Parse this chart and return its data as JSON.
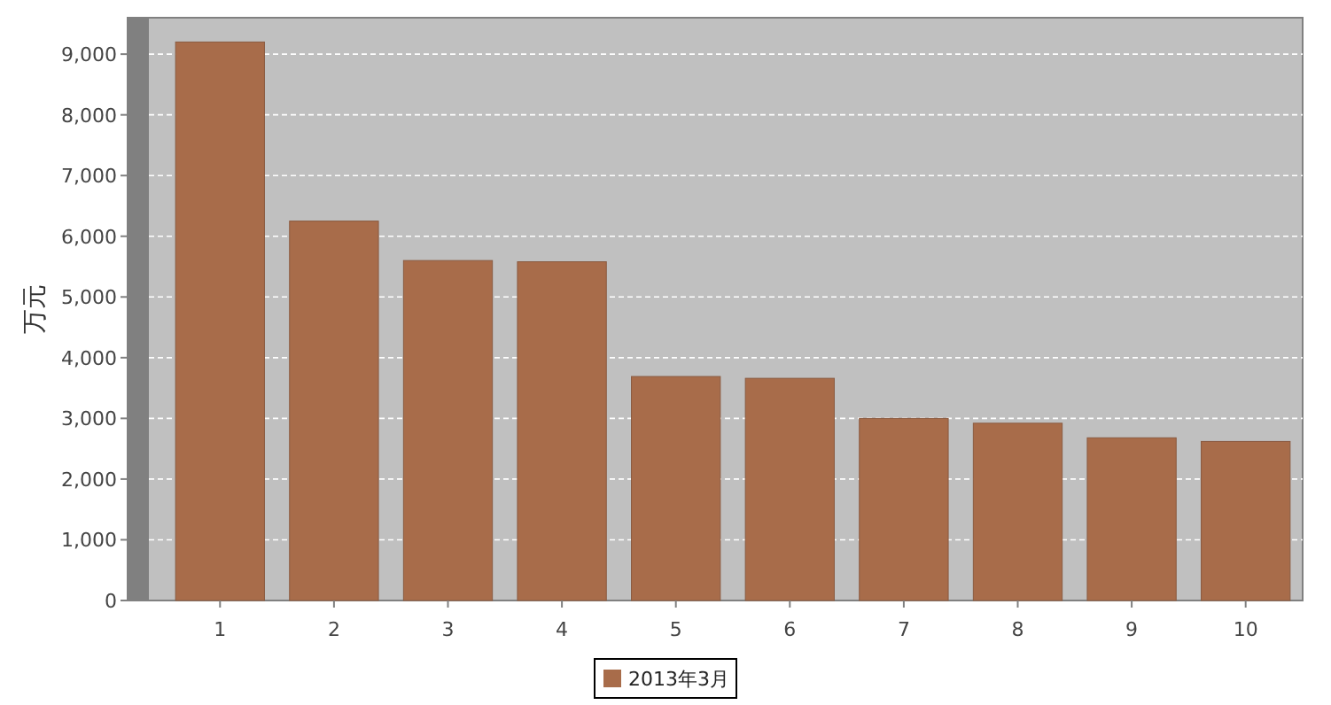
{
  "chart_data": {
    "type": "bar",
    "ylabel": "万元",
    "categories": [
      "1",
      "2",
      "3",
      "4",
      "5",
      "6",
      "7",
      "8",
      "9",
      "10"
    ],
    "series": [
      {
        "name": "2013年3月",
        "color": "#a86c4a",
        "values": [
          9200,
          6250,
          5600,
          5580,
          3690,
          3660,
          3000,
          2920,
          2680,
          2620
        ]
      }
    ],
    "ylim": [
      0,
      9600
    ],
    "yticks": [
      0,
      {
        "value": 1000,
        "label": "1,000"
      },
      {
        "value": 2000,
        "label": "2,000"
      },
      {
        "value": 3000,
        "label": "3,000"
      },
      {
        "value": 4000,
        "label": "4,000"
      },
      {
        "value": 5000,
        "label": "5,000"
      },
      {
        "value": 6000,
        "label": "6,000"
      },
      {
        "value": 7000,
        "label": "7,000"
      },
      {
        "value": 8000,
        "label": "8,000"
      },
      {
        "value": 9000,
        "label": "9,000"
      }
    ],
    "grid": "y",
    "legend": "bottom"
  }
}
